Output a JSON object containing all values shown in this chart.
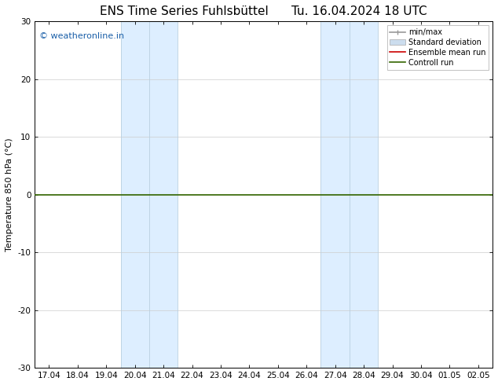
{
  "title_left": "ENS Time Series Fuhlsbüttel",
  "title_right": "Tu. 16.04.2024 18 UTC",
  "ylabel": "Temperature 850 hPa (°C)",
  "ylim": [
    -30,
    30
  ],
  "yticks": [
    -30,
    -20,
    -10,
    0,
    10,
    20,
    30
  ],
  "x_tick_labels": [
    "17.04",
    "18.04",
    "19.04",
    "20.04",
    "21.04",
    "22.04",
    "23.04",
    "24.04",
    "25.04",
    "26.04",
    "27.04",
    "28.04",
    "29.04",
    "30.04",
    "01.05",
    "02.05"
  ],
  "x_tick_positions": [
    0,
    1,
    2,
    3,
    4,
    5,
    6,
    7,
    8,
    9,
    10,
    11,
    12,
    13,
    14,
    15
  ],
  "shaded_bands": [
    {
      "x_start": 3,
      "x_end": 5
    },
    {
      "x_start": 10,
      "x_end": 12
    }
  ],
  "band_color": "#ddeeff",
  "band_edge_color": "#b8cfe0",
  "zero_line_color": "#336600",
  "zero_line_y": 0,
  "watermark_text": "© weatheronline.in",
  "watermark_color": "#1a5fa8",
  "legend_items": [
    {
      "label": "min/max",
      "color": "#999999",
      "lw": 1.2
    },
    {
      "label": "Standard deviation",
      "color": "#ccddee",
      "lw": 6
    },
    {
      "label": "Ensemble mean run",
      "color": "#cc0000",
      "lw": 1.2
    },
    {
      "label": "Controll run",
      "color": "#336600",
      "lw": 1.2
    }
  ],
  "background_color": "#ffffff",
  "title_fontsize": 11,
  "axis_fontsize": 8,
  "tick_fontsize": 7.5,
  "watermark_fontsize": 8
}
